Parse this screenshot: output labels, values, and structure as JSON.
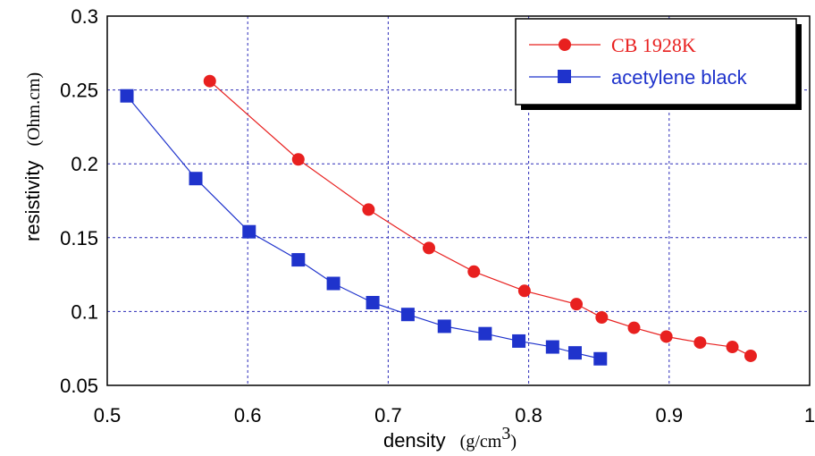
{
  "chart_data": {
    "type": "line",
    "xlabel": "density",
    "xlabel_unit_prefix": "(g/cm",
    "xlabel_unit_sup": "3",
    "xlabel_unit_suffix": ")",
    "ylabel": "resistivity",
    "ylabel_unit": "(Ohm.cm)",
    "xlim": [
      0.5,
      1.0
    ],
    "ylim": [
      0.05,
      0.3
    ],
    "x_ticks": [
      "0.5",
      "0.6",
      "0.7",
      "0.8",
      "0.9",
      "1"
    ],
    "y_ticks": [
      "0.05",
      "0.1",
      "0.15",
      "0.2",
      "0.25",
      "0.3"
    ],
    "x_tick_values": [
      0.5,
      0.6,
      0.7,
      0.8,
      0.9,
      1.0
    ],
    "y_tick_values": [
      0.05,
      0.1,
      0.15,
      0.2,
      0.25,
      0.3
    ],
    "grid": true,
    "legend_position": "top-right",
    "series": [
      {
        "name": "CB 1928K",
        "color": "#e8201f",
        "marker": "circle",
        "x": [
          0.573,
          0.636,
          0.686,
          0.729,
          0.761,
          0.797,
          0.834,
          0.852,
          0.875,
          0.898,
          0.922,
          0.945,
          0.958
        ],
        "y": [
          0.256,
          0.203,
          0.169,
          0.143,
          0.127,
          0.114,
          0.105,
          0.096,
          0.089,
          0.083,
          0.079,
          0.076,
          0.07
        ]
      },
      {
        "name": "acetylene black",
        "color": "#1f33cc",
        "marker": "square",
        "x": [
          0.514,
          0.563,
          0.601,
          0.636,
          0.661,
          0.689,
          0.714,
          0.74,
          0.769,
          0.793,
          0.817,
          0.833,
          0.851
        ],
        "y": [
          0.246,
          0.19,
          0.154,
          0.135,
          0.119,
          0.106,
          0.098,
          0.09,
          0.085,
          0.08,
          0.076,
          0.072,
          0.068
        ]
      }
    ]
  }
}
